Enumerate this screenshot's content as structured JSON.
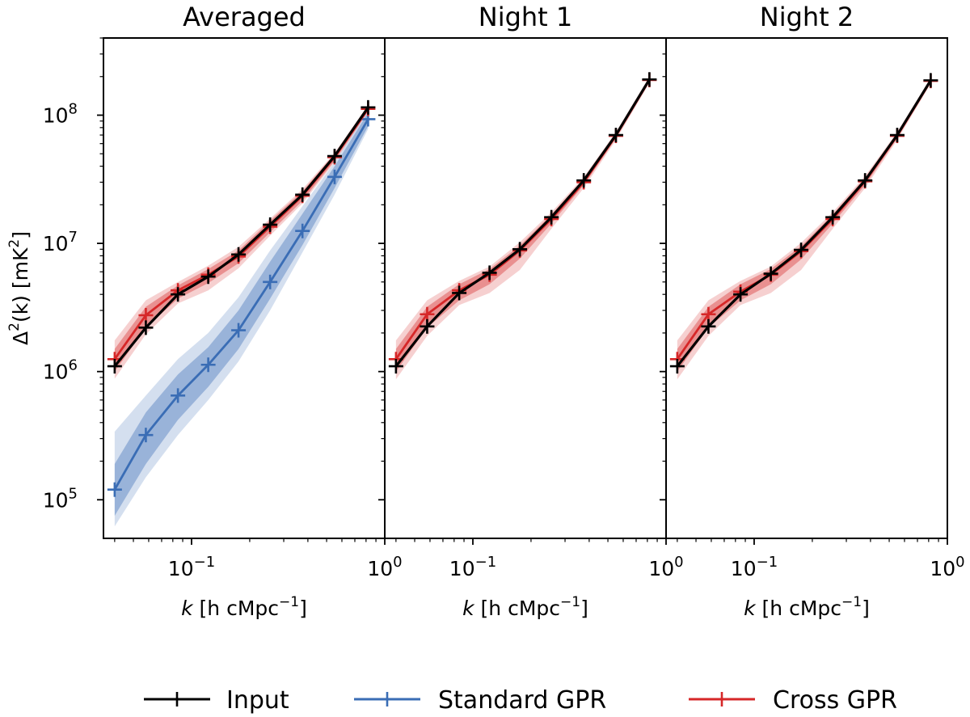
{
  "chart_data": [
    {
      "type": "line",
      "title": "Averaged",
      "xscale": "log",
      "yscale": "log",
      "xlim": [
        0.035,
        1.0
      ],
      "ylim": [
        50000,
        400000000
      ],
      "xlabel": "k [h cMpc⁻¹]",
      "ylabel": "Δ²(k) [mK²]",
      "x": [
        0.04,
        0.058,
        0.085,
        0.122,
        0.175,
        0.255,
        0.375,
        0.55,
        0.82
      ],
      "series": [
        {
          "name": "Input",
          "color": "#000000",
          "values": [
            1100000,
            2200000,
            4000000,
            5500000,
            8200000,
            14000000,
            24000000,
            48000000,
            115000000
          ]
        },
        {
          "name": "Standard GPR",
          "color": "#3a6db5",
          "values": [
            120000,
            320000,
            650000,
            1130000,
            2100000,
            5000000,
            12500000,
            33000000,
            93000000
          ],
          "band_1sigma": [
            [
              75000,
              190000
            ],
            [
              190000,
              480000
            ],
            [
              420000,
              950000
            ],
            [
              760000,
              1550000
            ],
            [
              1500000,
              3000000
            ],
            [
              3700000,
              7200000
            ],
            [
              9700000,
              17000000
            ],
            [
              27000000,
              40000000
            ],
            [
              82000000,
              105000000
            ]
          ],
          "band_2sigma": [
            [
              62000,
              340000
            ],
            [
              150000,
              650000
            ],
            [
              320000,
              1250000
            ],
            [
              600000,
              2000000
            ],
            [
              1200000,
              3800000
            ],
            [
              3000000,
              8800000
            ],
            [
              8500000,
              19500000
            ],
            [
              24000000,
              43000000
            ],
            [
              78000000,
              110000000
            ]
          ]
        },
        {
          "name": "Cross GPR",
          "color": "#d62728",
          "values": [
            1250000,
            2750000,
            4300000,
            5700000,
            7900000,
            13500000,
            23500000,
            47000000,
            112000000
          ],
          "band_1sigma": [
            [
              1000000,
              1500000
            ],
            [
              2200000,
              3200000
            ],
            [
              3700000,
              4700000
            ],
            [
              4900000,
              6300000
            ],
            [
              7000000,
              8800000
            ],
            [
              12200000,
              15000000
            ],
            [
              21500000,
              25500000
            ],
            [
              44000000,
              50000000
            ],
            [
              108000000,
              118000000
            ]
          ],
          "band_2sigma": [
            [
              880000,
              1750000
            ],
            [
              1950000,
              3600000
            ],
            [
              3400000,
              5000000
            ],
            [
              4300000,
              6700000
            ],
            [
              6400000,
              9400000
            ],
            [
              11500000,
              15600000
            ],
            [
              20500000,
              26500000
            ],
            [
              43000000,
              51000000
            ],
            [
              106000000,
              120000000
            ]
          ]
        }
      ]
    },
    {
      "type": "line",
      "title": "Night 1",
      "xscale": "log",
      "yscale": "log",
      "xlim": [
        0.035,
        1.0
      ],
      "ylim": [
        50000,
        400000000
      ],
      "xlabel": "k [h cMpc⁻¹]",
      "x": [
        0.04,
        0.058,
        0.085,
        0.122,
        0.175,
        0.255,
        0.375,
        0.55,
        0.82
      ],
      "series": [
        {
          "name": "Input",
          "color": "#000000",
          "values": [
            1100000,
            2250000,
            4100000,
            5900000,
            9000000,
            16000000,
            31000000,
            70000000,
            190000000
          ]
        },
        {
          "name": "Cross GPR",
          "color": "#d62728",
          "values": [
            1250000,
            2800000,
            4300000,
            5700000,
            8800000,
            15500000,
            30000000,
            69000000,
            188000000
          ],
          "band_1sigma": [
            [
              1000000,
              1500000
            ],
            [
              2200000,
              3200000
            ],
            [
              3600000,
              4800000
            ],
            [
              4800000,
              6300000
            ],
            [
              7600000,
              9600000
            ],
            [
              14300000,
              16800000
            ],
            [
              28500000,
              32000000
            ],
            [
              66000000,
              72000000
            ],
            [
              182000000,
              196000000
            ]
          ],
          "band_2sigma": [
            [
              870000,
              1750000
            ],
            [
              1900000,
              3600000
            ],
            [
              3300000,
              5100000
            ],
            [
              4100000,
              6600000
            ],
            [
              6200000,
              10200000
            ],
            [
              13000000,
              17500000
            ],
            [
              27000000,
              33000000
            ],
            [
              64000000,
              74000000
            ],
            [
              178000000,
              200000000
            ]
          ]
        }
      ]
    },
    {
      "type": "line",
      "title": "Night 2",
      "xscale": "log",
      "yscale": "log",
      "xlim": [
        0.035,
        1.0
      ],
      "ylim": [
        50000,
        400000000
      ],
      "xlabel": "k [h cMpc⁻¹]",
      "x": [
        0.04,
        0.058,
        0.085,
        0.122,
        0.175,
        0.255,
        0.375,
        0.55,
        0.82
      ],
      "series": [
        {
          "name": "Input",
          "color": "#000000",
          "values": [
            1100000,
            2250000,
            4000000,
            5800000,
            8900000,
            16000000,
            31000000,
            70000000,
            187000000
          ]
        },
        {
          "name": "Cross GPR",
          "color": "#d62728",
          "values": [
            1250000,
            2800000,
            4200000,
            5700000,
            8700000,
            15500000,
            30500000,
            69000000,
            185000000
          ],
          "band_1sigma": [
            [
              1000000,
              1500000
            ],
            [
              2200000,
              3200000
            ],
            [
              3600000,
              4800000
            ],
            [
              4800000,
              6300000
            ],
            [
              7500000,
              9500000
            ],
            [
              14300000,
              16800000
            ],
            [
              28500000,
              32500000
            ],
            [
              66000000,
              72000000
            ],
            [
              180000000,
              192000000
            ]
          ],
          "band_2sigma": [
            [
              870000,
              1750000
            ],
            [
              1900000,
              3600000
            ],
            [
              3300000,
              5100000
            ],
            [
              4100000,
              6600000
            ],
            [
              6200000,
              10100000
            ],
            [
              13000000,
              17500000
            ],
            [
              27000000,
              33500000
            ],
            [
              64000000,
              74000000
            ],
            [
              176000000,
              196000000
            ]
          ]
        }
      ]
    }
  ],
  "legend": {
    "placement": "bottom",
    "items": [
      {
        "label": "Input",
        "color": "#000000"
      },
      {
        "label": "Standard GPR",
        "color": "#3a6db5"
      },
      {
        "label": "Cross GPR",
        "color": "#d62728"
      }
    ]
  },
  "tick_labels": {
    "y": [
      {
        "base": "10",
        "exp": "5",
        "value": 100000
      },
      {
        "base": "10",
        "exp": "6",
        "value": 1000000
      },
      {
        "base": "10",
        "exp": "7",
        "value": 10000000
      },
      {
        "base": "10",
        "exp": "8",
        "value": 100000000
      }
    ],
    "x": [
      {
        "base": "10",
        "exp": "−1",
        "value": 0.1
      },
      {
        "base": "10",
        "exp": "0",
        "value": 1
      }
    ]
  },
  "axis_text": {
    "ylabel_delta": "Δ",
    "ylabel_sup": "2",
    "ylabel_mid": "(k) [mK",
    "ylabel_sup2": "2",
    "ylabel_end": "]",
    "xlabel_k": "k",
    "xlabel_mid": " [h cMpc",
    "xlabel_sup": "−1",
    "xlabel_end": "]"
  }
}
